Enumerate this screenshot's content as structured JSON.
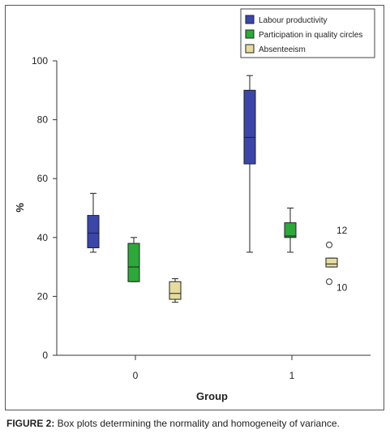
{
  "chart_data": {
    "type": "box",
    "ylabel": "%",
    "xlabel": "Group",
    "ylim": [
      0,
      100
    ],
    "yticks": [
      0,
      20,
      40,
      60,
      80,
      100
    ],
    "categories": [
      "0",
      "1"
    ],
    "series": [
      {
        "name": "Labour productivity",
        "color": "#3b46a8",
        "boxes": [
          {
            "category": "0",
            "min": 35,
            "q1": 36.5,
            "median": 41.5,
            "q3": 47.5,
            "max": 55,
            "outliers": []
          },
          {
            "category": "1",
            "min": 35,
            "q1": 65,
            "median": 74,
            "q3": 90,
            "max": 95,
            "outliers": []
          }
        ]
      },
      {
        "name": "Participation in quality circles",
        "color": "#2ea83a",
        "boxes": [
          {
            "category": "0",
            "min": 25,
            "q1": 25,
            "median": 30,
            "q3": 38,
            "max": 40,
            "outliers": []
          },
          {
            "category": "1",
            "min": 35,
            "q1": 40,
            "median": 40.5,
            "q3": 45,
            "max": 50,
            "outliers": []
          }
        ]
      },
      {
        "name": "Absenteeism",
        "color": "#e6dca0",
        "boxes": [
          {
            "category": "0",
            "min": 18,
            "q1": 19,
            "median": 21,
            "q3": 25,
            "max": 26,
            "outliers": []
          },
          {
            "category": "1",
            "min": 30,
            "q1": 30,
            "median": 31,
            "q3": 33,
            "max": 33,
            "outliers": [
              {
                "value": 37.5,
                "label": "12"
              },
              {
                "value": 25,
                "label": "10"
              }
            ]
          }
        ]
      }
    ]
  },
  "caption": {
    "label": "FIGURE 2:",
    "text": " Box plots determining the normality and homogeneity of variance."
  }
}
